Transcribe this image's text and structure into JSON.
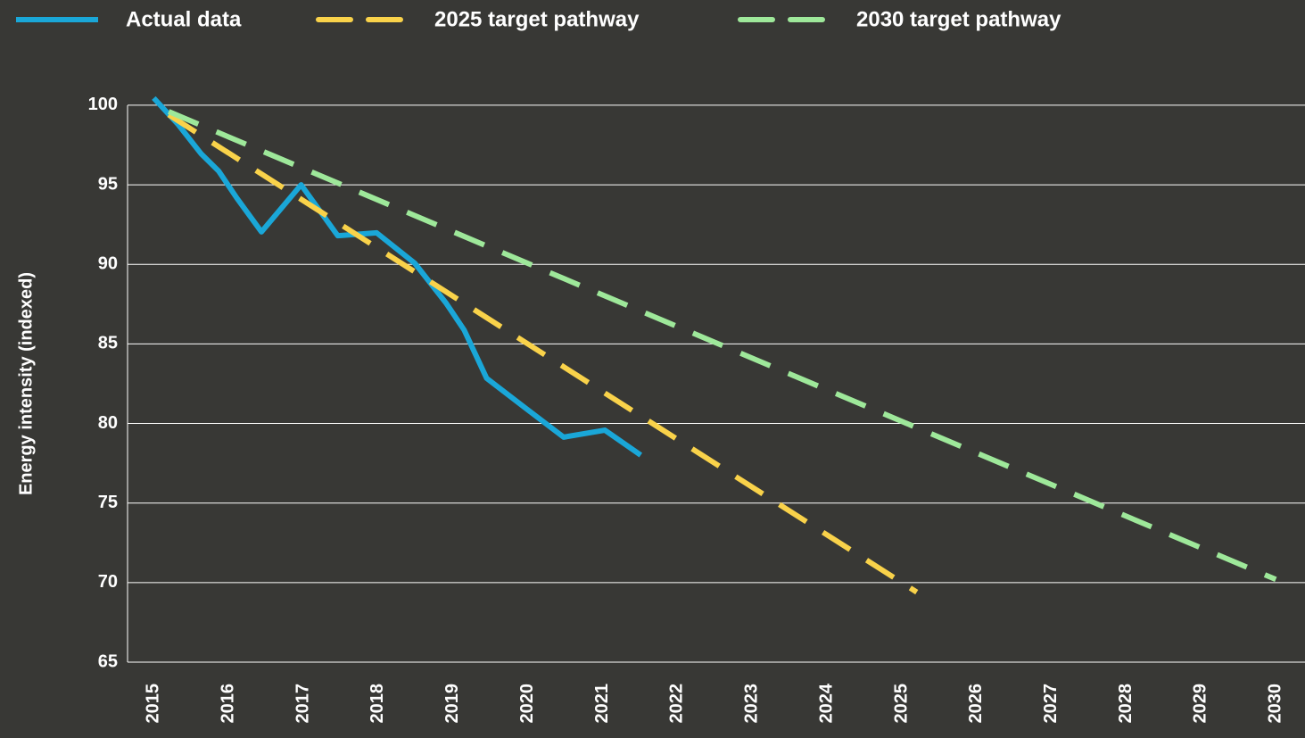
{
  "chart_data": {
    "type": "line",
    "y_label": "Energy intensity (indexed)",
    "xlim": [
      2014.65,
      2030.39
    ],
    "xticks": [
      2015,
      2016,
      2017,
      2018,
      2019,
      2020,
      2021,
      2022,
      2023,
      2024,
      2025,
      2026,
      2027,
      2028,
      2029,
      2030
    ],
    "ylim": [
      65,
      100.5
    ],
    "yticks": [
      65,
      70,
      75,
      80,
      85,
      90,
      95,
      100
    ],
    "grid": true,
    "series": [
      {
        "name": "Actual data",
        "color": "#1aa7d8",
        "dash": false,
        "x": [
          2015,
          2015.33,
          2015.63,
          2015.87,
          2016.11,
          2016.44,
          2016.97,
          2017.46,
          2017.98,
          2018.49,
          2018.91,
          2019.15,
          2019.45,
          2019.98,
          2020.48,
          2021.03,
          2021.51
        ],
        "values": [
          100.45,
          98.77,
          96.97,
          95.85,
          94.17,
          92.04,
          95.0,
          91.8,
          91.98,
          90.07,
          87.55,
          85.87,
          82.84,
          80.93,
          79.14,
          79.58,
          78.01
        ]
      },
      {
        "name": "2025 target pathway",
        "color": "#f9d24a",
        "dash": true,
        "x": [
          2015.2,
          2025.2
        ],
        "values": [
          99.4,
          69.4
        ]
      },
      {
        "name": "2030 target pathway",
        "color": "#9ee89a",
        "dash": true,
        "x": [
          2015.2,
          2030
        ],
        "values": [
          99.6,
          70.2
        ]
      }
    ]
  }
}
